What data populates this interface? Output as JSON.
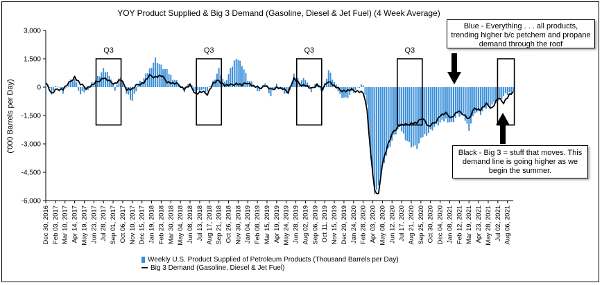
{
  "chart_data": {
    "type": "bar+line",
    "title": "YOY Product Supplied & Big 3 Demand (Gasoline, Diesel & Jet Fuel) (4 Week Average)",
    "ylabel": "('000 Barrels per Day)",
    "ylim": [
      -6000,
      3000
    ],
    "yticks": [
      "3,000",
      "1,500",
      "0",
      "-1,500",
      "-3,000",
      "-4,500",
      "-6,000"
    ],
    "ytick_values": [
      3000,
      1500,
      0,
      -1500,
      -3000,
      -4500,
      -6000
    ],
    "x_start": "Dec 30, 2016",
    "x_end": "Aug 27, 2021",
    "xticks": [
      "Dec 30, 2016",
      "Feb 03, 2017",
      "Mar 10, 2017",
      "Apr 14, 2017",
      "May 19, 2017",
      "Jun 23, 2017",
      "Jul 28, 2017",
      "Sep 01, 2017",
      "Oct 06, 2017",
      "Nov 10, 2017",
      "Dec 15, 2017",
      "Jan 19, 2018",
      "Feb 23, 2018",
      "Mar 30, 2018",
      "May 04, 2018",
      "Jun 08, 2018",
      "Jul 13, 2018",
      "Aug 17, 2018",
      "Sep 21, 2018",
      "Oct 26, 2018",
      "Nov 30, 2018",
      "Jan 04, 2019",
      "Feb 08, 2019",
      "Mar 15, 2019",
      "Apr 19, 2019",
      "May 24, 2019",
      "Jun 28, 2019",
      "Aug 02, 2019",
      "Sep 06, 2019",
      "Oct 11, 2019",
      "Nov 15, 2019",
      "Dec 20, 2019",
      "Jan 24, 2020",
      "Feb 28, 2020",
      "Apr 03, 2020",
      "May 08, 2020",
      "Jun 12, 2020",
      "Jul 17, 2020",
      "Aug 21, 2020",
      "Sep 25, 2020",
      "Oct 30, 2020",
      "Dec 04, 2020",
      "Jan 08, 2021",
      "Feb 12, 2021",
      "Mar 19, 2021",
      "Apr 23, 2021",
      "May 28, 2021",
      "Jul 02, 2021",
      "Aug 06, 2021"
    ],
    "series": [
      {
        "name": "Weekly U.S. Product Supplied of Petroleum Products  (Thousand Barrels per Day)",
        "kind": "bar",
        "color": "#3a8fd9",
        "points": [
          [
            "Dec 30, 2016",
            300
          ],
          [
            "Jan 20, 2017",
            -300
          ],
          [
            "Feb 10, 2017",
            100
          ],
          [
            "Mar 03, 2017",
            -300
          ],
          [
            "Mar 24, 2017",
            300
          ],
          [
            "Apr 14, 2017",
            450
          ],
          [
            "May 05, 2017",
            -400
          ],
          [
            "May 26, 2017",
            -150
          ],
          [
            "Jun 16, 2017",
            200
          ],
          [
            "Jul 07, 2017",
            500
          ],
          [
            "Jul 28, 2017",
            900
          ],
          [
            "Aug 18, 2017",
            700
          ],
          [
            "Sep 08, 2017",
            -100
          ],
          [
            "Sep 29, 2017",
            600
          ],
          [
            "Oct 20, 2017",
            -300
          ],
          [
            "Nov 10, 2017",
            -700
          ],
          [
            "Dec 01, 2017",
            150
          ],
          [
            "Dec 22, 2017",
            450
          ],
          [
            "Jan 12, 2018",
            950
          ],
          [
            "Feb 02, 2018",
            1500
          ],
          [
            "Feb 23, 2018",
            1100
          ],
          [
            "Mar 16, 2018",
            850
          ],
          [
            "Apr 06, 2018",
            500
          ],
          [
            "Apr 27, 2018",
            200
          ],
          [
            "May 18, 2018",
            -200
          ],
          [
            "Jun 08, 2018",
            200
          ],
          [
            "Jun 29, 2018",
            -250
          ],
          [
            "Jul 20, 2018",
            -150
          ],
          [
            "Aug 10, 2018",
            -250
          ],
          [
            "Aug 31, 2018",
            300
          ],
          [
            "Sep 21, 2018",
            950
          ],
          [
            "Oct 12, 2018",
            200
          ],
          [
            "Nov 02, 2018",
            900
          ],
          [
            "Nov 23, 2018",
            1600
          ],
          [
            "Dec 14, 2018",
            1200
          ],
          [
            "Jan 04, 2019",
            400
          ],
          [
            "Jan 25, 2019",
            100
          ],
          [
            "Feb 15, 2019",
            -200
          ],
          [
            "Mar 08, 2019",
            200
          ],
          [
            "Mar 29, 2019",
            -500
          ],
          [
            "Apr 19, 2019",
            150
          ],
          [
            "May 10, 2019",
            -200
          ],
          [
            "May 31, 2019",
            -400
          ],
          [
            "Jun 21, 2019",
            600
          ],
          [
            "Jul 12, 2019",
            350
          ],
          [
            "Aug 02, 2019",
            450
          ],
          [
            "Aug 23, 2019",
            -200
          ],
          [
            "Sep 13, 2019",
            200
          ],
          [
            "Oct 04, 2019",
            -200
          ],
          [
            "Oct 25, 2019",
            900
          ],
          [
            "Nov 15, 2019",
            250
          ],
          [
            "Dec 06, 2019",
            -400
          ],
          [
            "Dec 27, 2019",
            -600
          ],
          [
            "Jan 17, 2020",
            -300
          ],
          [
            "Feb 07, 2020",
            -100
          ],
          [
            "Feb 28, 2020",
            200
          ],
          [
            "Mar 13, 2020",
            -1000
          ],
          [
            "Mar 27, 2020",
            -3800
          ],
          [
            "Apr 10, 2020",
            -5600
          ],
          [
            "Apr 24, 2020",
            -5300
          ],
          [
            "May 08, 2020",
            -4200
          ],
          [
            "May 29, 2020",
            -3300
          ],
          [
            "Jun 19, 2020",
            -2600
          ],
          [
            "Jul 10, 2020",
            -2100
          ],
          [
            "Jul 31, 2020",
            -2700
          ],
          [
            "Aug 21, 2020",
            -3100
          ],
          [
            "Sep 11, 2020",
            -3200
          ],
          [
            "Oct 02, 2020",
            -2600
          ],
          [
            "Oct 23, 2020",
            -2400
          ],
          [
            "Nov 13, 2020",
            -2100
          ],
          [
            "Dec 04, 2020",
            -1900
          ],
          [
            "Dec 25, 2020",
            -1700
          ],
          [
            "Jan 15, 2021",
            -1900
          ],
          [
            "Feb 05, 2021",
            -1500
          ],
          [
            "Feb 26, 2021",
            -1500
          ],
          [
            "Mar 19, 2021",
            -2200
          ],
          [
            "Apr 09, 2021",
            -1300
          ],
          [
            "Apr 30, 2021",
            -1400
          ],
          [
            "May 21, 2021",
            -1100
          ],
          [
            "Jun 11, 2021",
            -900
          ],
          [
            "Jul 02, 2021",
            -700
          ],
          [
            "Jul 23, 2021",
            -500
          ],
          [
            "Aug 13, 2021",
            -300
          ],
          [
            "Aug 27, 2021",
            -200
          ]
        ]
      },
      {
        "name": "Big 3 Demand (Gasoline, Diesel & Jet Fuel)",
        "kind": "line",
        "color": "#000000",
        "points": [
          [
            "Dec 30, 2016",
            300
          ],
          [
            "Jan 20, 2017",
            -350
          ],
          [
            "Feb 10, 2017",
            -100
          ],
          [
            "Mar 03, 2017",
            -100
          ],
          [
            "Mar 24, 2017",
            200
          ],
          [
            "Apr 14, 2017",
            550
          ],
          [
            "May 05, 2017",
            150
          ],
          [
            "May 26, 2017",
            -50
          ],
          [
            "Jun 16, 2017",
            100
          ],
          [
            "Jul 07, 2017",
            300
          ],
          [
            "Jul 28, 2017",
            500
          ],
          [
            "Aug 18, 2017",
            300
          ],
          [
            "Sep 08, 2017",
            200
          ],
          [
            "Sep 29, 2017",
            400
          ],
          [
            "Oct 20, 2017",
            -100
          ],
          [
            "Nov 10, 2017",
            -100
          ],
          [
            "Dec 01, 2017",
            150
          ],
          [
            "Dec 22, 2017",
            250
          ],
          [
            "Jan 12, 2018",
            600
          ],
          [
            "Feb 02, 2018",
            550
          ],
          [
            "Feb 23, 2018",
            600
          ],
          [
            "Mar 16, 2018",
            300
          ],
          [
            "Apr 06, 2018",
            200
          ],
          [
            "Apr 27, 2018",
            150
          ],
          [
            "May 18, 2018",
            -100
          ],
          [
            "Jun 08, 2018",
            100
          ],
          [
            "Jun 29, 2018",
            -350
          ],
          [
            "Jul 20, 2018",
            -250
          ],
          [
            "Aug 10, 2018",
            -350
          ],
          [
            "Aug 31, 2018",
            200
          ],
          [
            "Sep 21, 2018",
            350
          ],
          [
            "Oct 12, 2018",
            100
          ],
          [
            "Nov 02, 2018",
            100
          ],
          [
            "Nov 23, 2018",
            200
          ],
          [
            "Dec 14, 2018",
            100
          ],
          [
            "Jan 04, 2019",
            250
          ],
          [
            "Jan 25, 2019",
            50
          ],
          [
            "Feb 15, 2019",
            -50
          ],
          [
            "Mar 08, 2019",
            100
          ],
          [
            "Mar 29, 2019",
            -150
          ],
          [
            "Apr 19, 2019",
            0
          ],
          [
            "May 10, 2019",
            -100
          ],
          [
            "May 31, 2019",
            -250
          ],
          [
            "Jun 21, 2019",
            450
          ],
          [
            "Jul 12, 2019",
            150
          ],
          [
            "Aug 02, 2019",
            100
          ],
          [
            "Aug 23, 2019",
            -100
          ],
          [
            "Sep 13, 2019",
            150
          ],
          [
            "Oct 04, 2019",
            -100
          ],
          [
            "Oct 25, 2019",
            350
          ],
          [
            "Nov 15, 2019",
            50
          ],
          [
            "Dec 06, 2019",
            -150
          ],
          [
            "Dec 27, 2019",
            -200
          ],
          [
            "Jan 17, 2020",
            -150
          ],
          [
            "Feb 07, 2020",
            -200
          ],
          [
            "Feb 28, 2020",
            -300
          ],
          [
            "Mar 13, 2020",
            -1200
          ],
          [
            "Mar 27, 2020",
            -3600
          ],
          [
            "Apr 10, 2020",
            -5500
          ],
          [
            "Apr 24, 2020",
            -5700
          ],
          [
            "May 08, 2020",
            -4000
          ],
          [
            "May 29, 2020",
            -3000
          ],
          [
            "Jun 19, 2020",
            -2300
          ],
          [
            "Jul 10, 2020",
            -2000
          ],
          [
            "Jul 31, 2020",
            -2000
          ],
          [
            "Aug 21, 2020",
            -1900
          ],
          [
            "Sep 11, 2020",
            -1900
          ],
          [
            "Oct 02, 2020",
            -1600
          ],
          [
            "Oct 23, 2020",
            -2100
          ],
          [
            "Nov 13, 2020",
            -1900
          ],
          [
            "Dec 04, 2020",
            -1500
          ],
          [
            "Dec 25, 2020",
            -1400
          ],
          [
            "Jan 15, 2021",
            -1600
          ],
          [
            "Feb 05, 2021",
            -1300
          ],
          [
            "Feb 26, 2021",
            -1400
          ],
          [
            "Mar 19, 2021",
            -1700
          ],
          [
            "Apr 09, 2021",
            -1100
          ],
          [
            "Apr 30, 2021",
            -1200
          ],
          [
            "May 21, 2021",
            -900
          ],
          [
            "Jun 11, 2021",
            -1100
          ],
          [
            "Jul 02, 2021",
            -600
          ],
          [
            "Jul 23, 2021",
            -800
          ],
          [
            "Aug 13, 2021",
            -400
          ],
          [
            "Aug 27, 2021",
            -300
          ]
        ]
      }
    ],
    "annotations": [
      {
        "label": "Q3",
        "x_start": "Jul 01, 2017",
        "x_end": "Sep 30, 2017",
        "y_top": 1500,
        "y_bottom": -2000
      },
      {
        "label": "Q3",
        "x_start": "Jul 01, 2018",
        "x_end": "Sep 30, 2018",
        "y_top": 1500,
        "y_bottom": -2000
      },
      {
        "label": "Q3",
        "x_start": "Jul 01, 2019",
        "x_end": "Sep 30, 2019",
        "y_top": 1500,
        "y_bottom": -2000
      },
      {
        "label": "Q3",
        "x_start": "Jul 01, 2020",
        "x_end": "Sep 30, 2020",
        "y_top": 1500,
        "y_bottom": -2000
      },
      {
        "label": "",
        "x_start": "Jul 01, 2021",
        "x_end": "Aug 31, 2021",
        "y_top": 1500,
        "y_bottom": -2000
      }
    ],
    "legend_position": "bottom",
    "grid": false
  },
  "callouts": {
    "blue": "Blue - Everything . . . all products, trending higher b/c petchem and propane demand through the roof",
    "black": "Black - Big 3 = stuff that moves. This demand line is going higher as we begin the summer."
  }
}
